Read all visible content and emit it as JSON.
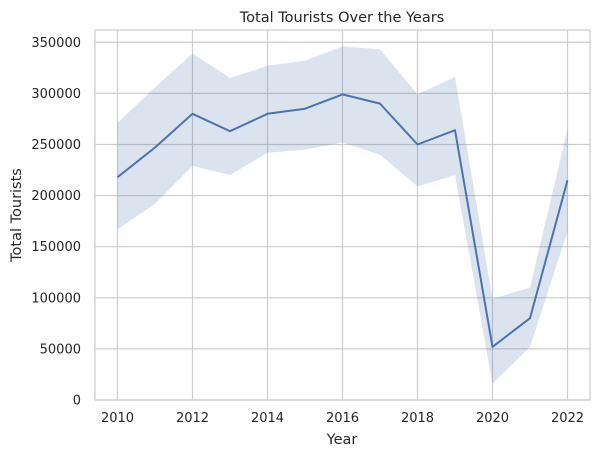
{
  "chart_data": {
    "type": "line",
    "title": "Total Tourists Over the Years",
    "xlabel": "Year",
    "ylabel": "Total Tourists",
    "xlim": [
      2009.4,
      2022.6
    ],
    "ylim": [
      0,
      362000
    ],
    "x_ticks": [
      2010,
      2012,
      2014,
      2016,
      2018,
      2020,
      2022
    ],
    "y_ticks": [
      0,
      50000,
      100000,
      150000,
      200000,
      250000,
      300000,
      350000
    ],
    "grid": true,
    "legend": "none",
    "colors": {
      "line": "#4c72b0",
      "band": "#4c72b0",
      "grid": "#cccccc",
      "axes": "#cccccc"
    },
    "series": [
      {
        "x": [
          2010,
          2011,
          2012,
          2013,
          2014,
          2015,
          2016,
          2017,
          2018,
          2019,
          2020,
          2021,
          2022
        ],
        "values": [
          218000,
          247000,
          280000,
          263000,
          280000,
          285000,
          299000,
          290000,
          250000,
          264000,
          52000,
          80000,
          215000
        ],
        "ci_lower": [
          167000,
          192000,
          229000,
          220000,
          242000,
          245000,
          252000,
          240000,
          209000,
          220000,
          16000,
          52000,
          165000
        ],
        "ci_upper": [
          271000,
          306000,
          339000,
          315000,
          327000,
          332000,
          346000,
          343000,
          299000,
          316000,
          99000,
          110000,
          265000
        ]
      }
    ]
  }
}
